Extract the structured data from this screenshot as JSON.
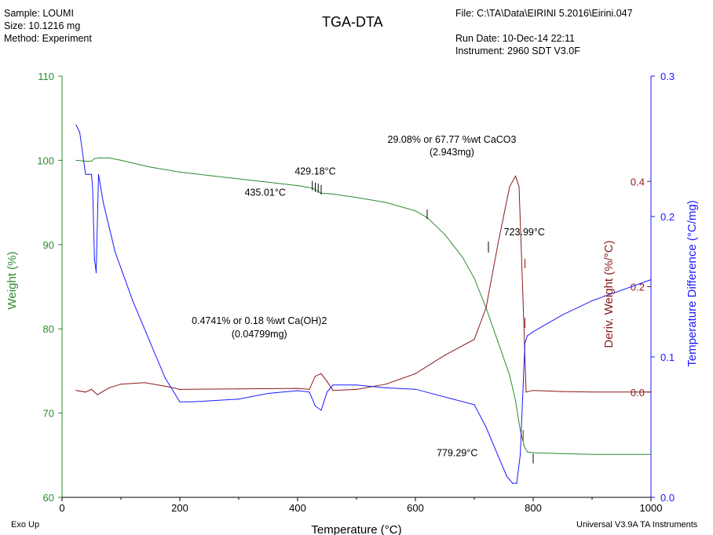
{
  "header": {
    "sample": "Sample: LOUMI",
    "size": "Size:   10.1216 mg",
    "method": "Method: Experiment",
    "title": "TGA-DTA",
    "file": "File: C:\\TA\\Data\\EIRINI 5.2016\\Eirini.047",
    "run_date": "Run Date: 10-Dec-14 22:11",
    "instrument": "Instrument: 2960 SDT V3.0F"
  },
  "footer": {
    "exo": "Exo Up",
    "software": "Universal V3.9A TA Instruments"
  },
  "colors": {
    "weight": "#2e8b2e",
    "deriv": "#8b1a1a",
    "temp_diff": "#1a1aff"
  },
  "chart_data": {
    "type": "line",
    "xlabel": "Temperature (°C)",
    "xlim": [
      0,
      1000
    ],
    "xticks": [
      0,
      200,
      400,
      600,
      800,
      1000
    ],
    "axes": {
      "weight": {
        "label": "Weight (%)",
        "lim": [
          60,
          110
        ],
        "ticks": [
          60,
          70,
          80,
          90,
          100,
          110
        ],
        "side": "left"
      },
      "deriv": {
        "label": "Deriv. Weight (%/°C)",
        "lim": [
          -0.2,
          0.6
        ],
        "ticks": [
          0.0,
          0.2,
          0.4
        ],
        "side": "right-inner"
      },
      "temp_diff": {
        "label": "Temperature Difference (°C/mg)",
        "lim": [
          0.0,
          0.3
        ],
        "ticks": [
          0.0,
          0.1,
          0.2,
          0.3
        ],
        "side": "right"
      }
    },
    "tick_labels": {
      "x": [
        "0",
        "200",
        "400",
        "600",
        "800",
        "1000"
      ],
      "weight": [
        "60",
        "70",
        "80",
        "90",
        "100",
        "110"
      ],
      "deriv": [
        "0.0",
        "0.2",
        "0.4"
      ],
      "temp_diff": [
        "0.0",
        "0.1",
        "0.2",
        "0.3"
      ]
    },
    "series": [
      {
        "axis": "weight",
        "x": [
          24,
          40,
          50,
          55,
          65,
          80,
          100,
          150,
          200,
          250,
          300,
          350,
          400,
          425,
          440,
          460,
          500,
          550,
          600,
          620,
          650,
          680,
          700,
          720,
          740,
          760,
          770,
          778,
          785,
          790,
          800,
          850,
          900,
          1000
        ],
        "y": [
          100.0,
          99.9,
          99.9,
          100.2,
          100.3,
          100.3,
          100.0,
          99.2,
          98.6,
          98.2,
          97.8,
          97.4,
          97.0,
          96.7,
          96.1,
          96.0,
          95.6,
          95.0,
          94.0,
          93.2,
          91.2,
          88.5,
          86.0,
          82.5,
          78.5,
          74.5,
          71.5,
          68.0,
          66.0,
          65.4,
          65.3,
          65.2,
          65.1,
          65.1
        ]
      },
      {
        "axis": "deriv",
        "x": [
          24,
          40,
          50,
          55,
          60,
          80,
          100,
          140,
          180,
          200,
          300,
          400,
          420,
          430,
          440,
          450,
          460,
          500,
          550,
          600,
          650,
          700,
          720,
          740,
          760,
          770,
          776,
          782,
          788,
          800,
          850,
          900,
          1000
        ],
        "y": [
          0.003,
          0.0,
          0.005,
          0.0,
          -0.005,
          0.008,
          0.015,
          0.018,
          0.01,
          0.005,
          0.006,
          0.007,
          0.005,
          0.03,
          0.035,
          0.02,
          0.003,
          0.005,
          0.015,
          0.035,
          0.07,
          0.1,
          0.16,
          0.28,
          0.39,
          0.41,
          0.39,
          0.2,
          0.0,
          0.003,
          0.001,
          0.0,
          0.0
        ]
      },
      {
        "axis": "temp_diff",
        "x": [
          24,
          30,
          40,
          45,
          50,
          52,
          55,
          58,
          62,
          70,
          90,
          120,
          150,
          175,
          200,
          220,
          300,
          350,
          400,
          420,
          430,
          440,
          450,
          460,
          470,
          500,
          550,
          600,
          700,
          720,
          740,
          755,
          765,
          772,
          778,
          782,
          786,
          790,
          800,
          850,
          900,
          1000
        ],
        "y": [
          0.265,
          0.26,
          0.23,
          0.23,
          0.23,
          0.22,
          0.17,
          0.16,
          0.23,
          0.21,
          0.175,
          0.14,
          0.11,
          0.085,
          0.068,
          0.068,
          0.07,
          0.074,
          0.076,
          0.075,
          0.065,
          0.062,
          0.075,
          0.08,
          0.08,
          0.08,
          0.078,
          0.077,
          0.066,
          0.05,
          0.03,
          0.015,
          0.01,
          0.01,
          0.03,
          0.07,
          0.11,
          0.115,
          0.118,
          0.13,
          0.14,
          0.155
        ]
      }
    ],
    "annotations": [
      {
        "text": "429.18°C",
        "x": 430,
        "y_axis": "weight",
        "y": 98.3
      },
      {
        "text": "435.01°C",
        "x": 345,
        "y_axis": "weight",
        "y": 95.8
      },
      {
        "text": "29.08% or 67.77 %wt CaCO3",
        "x": 662,
        "y_axis": "weight",
        "y": 102.1
      },
      {
        "text": "(2.943mg)",
        "x": 662,
        "y_axis": "weight",
        "y": 100.6
      },
      {
        "text": "723.99°C",
        "x": 785,
        "y_axis": "weight",
        "y": 91.1
      },
      {
        "text": "0.4741% or 0.18 %wt Ca(OH)2",
        "x": 335,
        "y_axis": "weight",
        "y": 80.6
      },
      {
        "text": "(0.04799mg)",
        "x": 335,
        "y_axis": "weight",
        "y": 79.0
      },
      {
        "text": "779.29°C",
        "x": 671,
        "y_axis": "weight",
        "y": 64.9
      }
    ]
  }
}
